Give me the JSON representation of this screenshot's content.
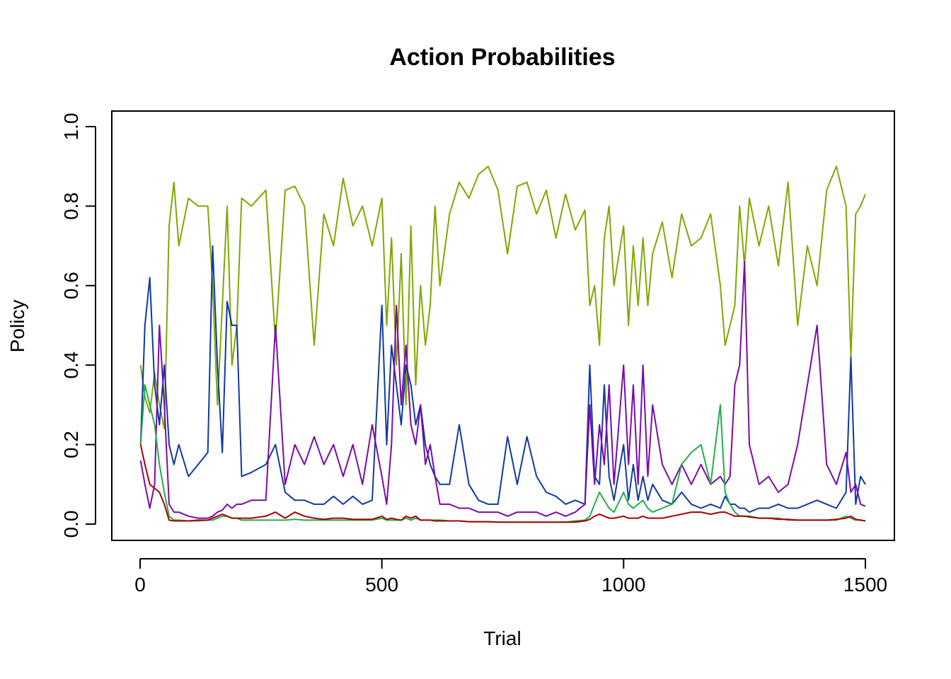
{
  "chart_data": {
    "type": "line",
    "title": "Action Probabilities",
    "xlabel": "Trial",
    "ylabel": "Policy",
    "xlim": [
      0,
      1500
    ],
    "ylim": [
      0,
      1
    ],
    "x_ticks": [
      "0",
      "500",
      "1000",
      "1500"
    ],
    "y_ticks": [
      "0.0",
      "0.2",
      "0.4",
      "0.6",
      "0.8",
      "1.0"
    ],
    "grid": false,
    "legend": null,
    "x": [
      1,
      10,
      20,
      30,
      40,
      50,
      60,
      70,
      80,
      100,
      120,
      140,
      150,
      160,
      170,
      180,
      190,
      200,
      210,
      230,
      260,
      280,
      300,
      320,
      340,
      360,
      380,
      400,
      420,
      440,
      460,
      480,
      500,
      510,
      520,
      530,
      540,
      550,
      560,
      570,
      580,
      590,
      600,
      610,
      620,
      640,
      660,
      680,
      700,
      720,
      740,
      760,
      780,
      800,
      820,
      840,
      860,
      880,
      900,
      920,
      930,
      940,
      950,
      960,
      970,
      980,
      1000,
      1010,
      1020,
      1030,
      1040,
      1050,
      1060,
      1080,
      1100,
      1120,
      1140,
      1160,
      1180,
      1200,
      1210,
      1220,
      1230,
      1240,
      1250,
      1260,
      1280,
      1300,
      1320,
      1340,
      1360,
      1380,
      1400,
      1420,
      1440,
      1460,
      1470,
      1480,
      1490,
      1500
    ],
    "series": [
      {
        "color": "#7fa800",
        "values": [
          0.4,
          0.32,
          0.28,
          0.38,
          0.3,
          0.24,
          0.75,
          0.86,
          0.7,
          0.82,
          0.8,
          0.8,
          0.6,
          0.3,
          0.55,
          0.8,
          0.4,
          0.5,
          0.82,
          0.8,
          0.84,
          0.46,
          0.84,
          0.85,
          0.8,
          0.45,
          0.78,
          0.7,
          0.87,
          0.75,
          0.8,
          0.7,
          0.82,
          0.5,
          0.72,
          0.4,
          0.68,
          0.3,
          0.75,
          0.35,
          0.6,
          0.45,
          0.55,
          0.8,
          0.6,
          0.78,
          0.86,
          0.82,
          0.88,
          0.9,
          0.84,
          0.68,
          0.85,
          0.86,
          0.78,
          0.84,
          0.72,
          0.83,
          0.74,
          0.79,
          0.55,
          0.6,
          0.45,
          0.72,
          0.8,
          0.6,
          0.75,
          0.5,
          0.7,
          0.55,
          0.72,
          0.55,
          0.68,
          0.76,
          0.62,
          0.78,
          0.7,
          0.72,
          0.78,
          0.6,
          0.45,
          0.5,
          0.55,
          0.8,
          0.65,
          0.82,
          0.7,
          0.8,
          0.65,
          0.86,
          0.5,
          0.7,
          0.6,
          0.84,
          0.9,
          0.8,
          0.42,
          0.78,
          0.8,
          0.83
        ]
      },
      {
        "color": "#0f3aa0",
        "values": [
          0.2,
          0.5,
          0.62,
          0.35,
          0.25,
          0.4,
          0.2,
          0.15,
          0.2,
          0.12,
          0.15,
          0.18,
          0.7,
          0.4,
          0.18,
          0.56,
          0.5,
          0.5,
          0.12,
          0.13,
          0.15,
          0.2,
          0.08,
          0.06,
          0.06,
          0.05,
          0.05,
          0.07,
          0.05,
          0.07,
          0.05,
          0.06,
          0.55,
          0.2,
          0.45,
          0.35,
          0.25,
          0.4,
          0.35,
          0.25,
          0.3,
          0.2,
          0.15,
          0.12,
          0.1,
          0.1,
          0.25,
          0.1,
          0.06,
          0.05,
          0.05,
          0.22,
          0.1,
          0.22,
          0.12,
          0.08,
          0.07,
          0.05,
          0.06,
          0.05,
          0.4,
          0.12,
          0.1,
          0.35,
          0.12,
          0.06,
          0.2,
          0.06,
          0.15,
          0.06,
          0.12,
          0.06,
          0.1,
          0.06,
          0.05,
          0.08,
          0.05,
          0.04,
          0.05,
          0.04,
          0.07,
          0.05,
          0.05,
          0.04,
          0.04,
          0.03,
          0.04,
          0.04,
          0.05,
          0.04,
          0.04,
          0.05,
          0.06,
          0.05,
          0.04,
          0.08,
          0.42,
          0.05,
          0.12,
          0.1
        ]
      },
      {
        "color": "#7b0aa8",
        "values": [
          0.16,
          0.1,
          0.04,
          0.1,
          0.5,
          0.3,
          0.05,
          0.03,
          0.03,
          0.02,
          0.015,
          0.015,
          0.02,
          0.03,
          0.035,
          0.05,
          0.04,
          0.05,
          0.05,
          0.06,
          0.06,
          0.5,
          0.1,
          0.2,
          0.15,
          0.22,
          0.15,
          0.2,
          0.12,
          0.2,
          0.1,
          0.25,
          0.12,
          0.05,
          0.2,
          0.55,
          0.3,
          0.45,
          0.25,
          0.2,
          0.3,
          0.15,
          0.2,
          0.12,
          0.05,
          0.05,
          0.04,
          0.04,
          0.03,
          0.03,
          0.03,
          0.02,
          0.03,
          0.03,
          0.03,
          0.02,
          0.03,
          0.02,
          0.03,
          0.05,
          0.3,
          0.1,
          0.25,
          0.15,
          0.35,
          0.1,
          0.4,
          0.15,
          0.35,
          0.1,
          0.4,
          0.12,
          0.3,
          0.15,
          0.1,
          0.15,
          0.1,
          0.15,
          0.1,
          0.12,
          0.1,
          0.12,
          0.35,
          0.4,
          0.66,
          0.2,
          0.1,
          0.12,
          0.08,
          0.1,
          0.2,
          0.35,
          0.5,
          0.15,
          0.1,
          0.18,
          0.08,
          0.1,
          0.05,
          0.045
        ]
      },
      {
        "color": "#22ad48",
        "values": [
          0.2,
          0.35,
          0.3,
          0.25,
          0.15,
          0.08,
          0.02,
          0.01,
          0.01,
          0.008,
          0.008,
          0.01,
          0.01,
          0.015,
          0.02,
          0.02,
          0.015,
          0.015,
          0.01,
          0.01,
          0.01,
          0.01,
          0.01,
          0.012,
          0.01,
          0.01,
          0.01,
          0.01,
          0.01,
          0.01,
          0.01,
          0.01,
          0.015,
          0.01,
          0.01,
          0.01,
          0.01,
          0.015,
          0.01,
          0.015,
          0.01,
          0.01,
          0.01,
          0.01,
          0.01,
          0.008,
          0.008,
          0.006,
          0.006,
          0.006,
          0.005,
          0.005,
          0.005,
          0.005,
          0.005,
          0.005,
          0.005,
          0.005,
          0.008,
          0.01,
          0.02,
          0.05,
          0.08,
          0.06,
          0.04,
          0.03,
          0.08,
          0.05,
          0.04,
          0.05,
          0.06,
          0.04,
          0.03,
          0.04,
          0.05,
          0.15,
          0.18,
          0.2,
          0.1,
          0.3,
          0.08,
          0.05,
          0.03,
          0.02,
          0.02,
          0.02,
          0.015,
          0.015,
          0.015,
          0.01,
          0.01,
          0.01,
          0.01,
          0.01,
          0.01,
          0.02,
          0.015,
          0.01,
          0.01,
          0.008
        ]
      },
      {
        "color": "#aa0000",
        "values": [
          0.2,
          0.15,
          0.1,
          0.09,
          0.08,
          0.05,
          0.01,
          0.008,
          0.008,
          0.008,
          0.01,
          0.01,
          0.015,
          0.02,
          0.025,
          0.02,
          0.015,
          0.015,
          0.015,
          0.015,
          0.02,
          0.03,
          0.015,
          0.03,
          0.02,
          0.015,
          0.012,
          0.015,
          0.015,
          0.012,
          0.012,
          0.012,
          0.02,
          0.012,
          0.015,
          0.012,
          0.01,
          0.02,
          0.015,
          0.02,
          0.01,
          0.01,
          0.01,
          0.008,
          0.008,
          0.008,
          0.008,
          0.006,
          0.006,
          0.006,
          0.005,
          0.005,
          0.005,
          0.005,
          0.005,
          0.005,
          0.005,
          0.005,
          0.005,
          0.008,
          0.012,
          0.02,
          0.025,
          0.02,
          0.015,
          0.015,
          0.02,
          0.015,
          0.015,
          0.015,
          0.02,
          0.015,
          0.015,
          0.015,
          0.02,
          0.025,
          0.03,
          0.03,
          0.025,
          0.03,
          0.03,
          0.025,
          0.02,
          0.02,
          0.02,
          0.018,
          0.015,
          0.015,
          0.012,
          0.012,
          0.01,
          0.01,
          0.01,
          0.01,
          0.012,
          0.015,
          0.02,
          0.012,
          0.01,
          0.008
        ]
      }
    ]
  }
}
